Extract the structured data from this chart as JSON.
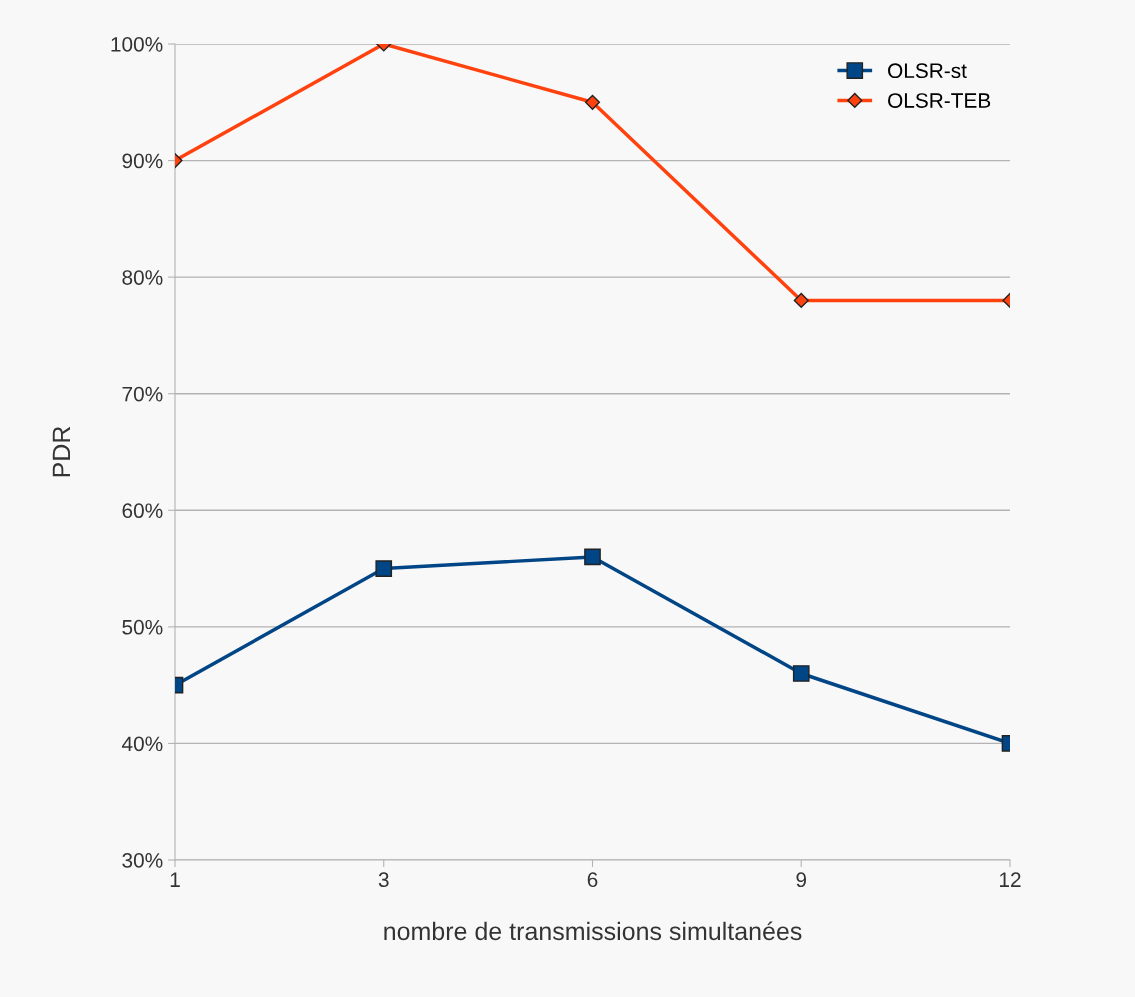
{
  "chart_data": {
    "type": "line",
    "xlabel": "nombre de transmissions simultanées",
    "ylabel": "PDR",
    "categories": [
      "1",
      "3",
      "6",
      "9",
      "12"
    ],
    "series": [
      {
        "name": "OLSR-st",
        "color": "#004586",
        "marker": "square",
        "values": [
          45,
          55,
          56,
          46,
          40
        ]
      },
      {
        "name": "OLSR-TEB",
        "color": "#ff420e",
        "marker": "diamond",
        "values": [
          90,
          100,
          95,
          78,
          78
        ]
      }
    ],
    "ylim": [
      30,
      100
    ],
    "yticks": [
      {
        "value": 30,
        "label": "30%"
      },
      {
        "value": 40,
        "label": "40%"
      },
      {
        "value": 50,
        "label": "50%"
      },
      {
        "value": 60,
        "label": "60%"
      },
      {
        "value": 70,
        "label": "70%"
      },
      {
        "value": 80,
        "label": "80%"
      },
      {
        "value": 90,
        "label": "90%"
      },
      {
        "value": 100,
        "label": "100%"
      }
    ],
    "grid": "y",
    "legend": "top right",
    "line_style": "solid"
  }
}
